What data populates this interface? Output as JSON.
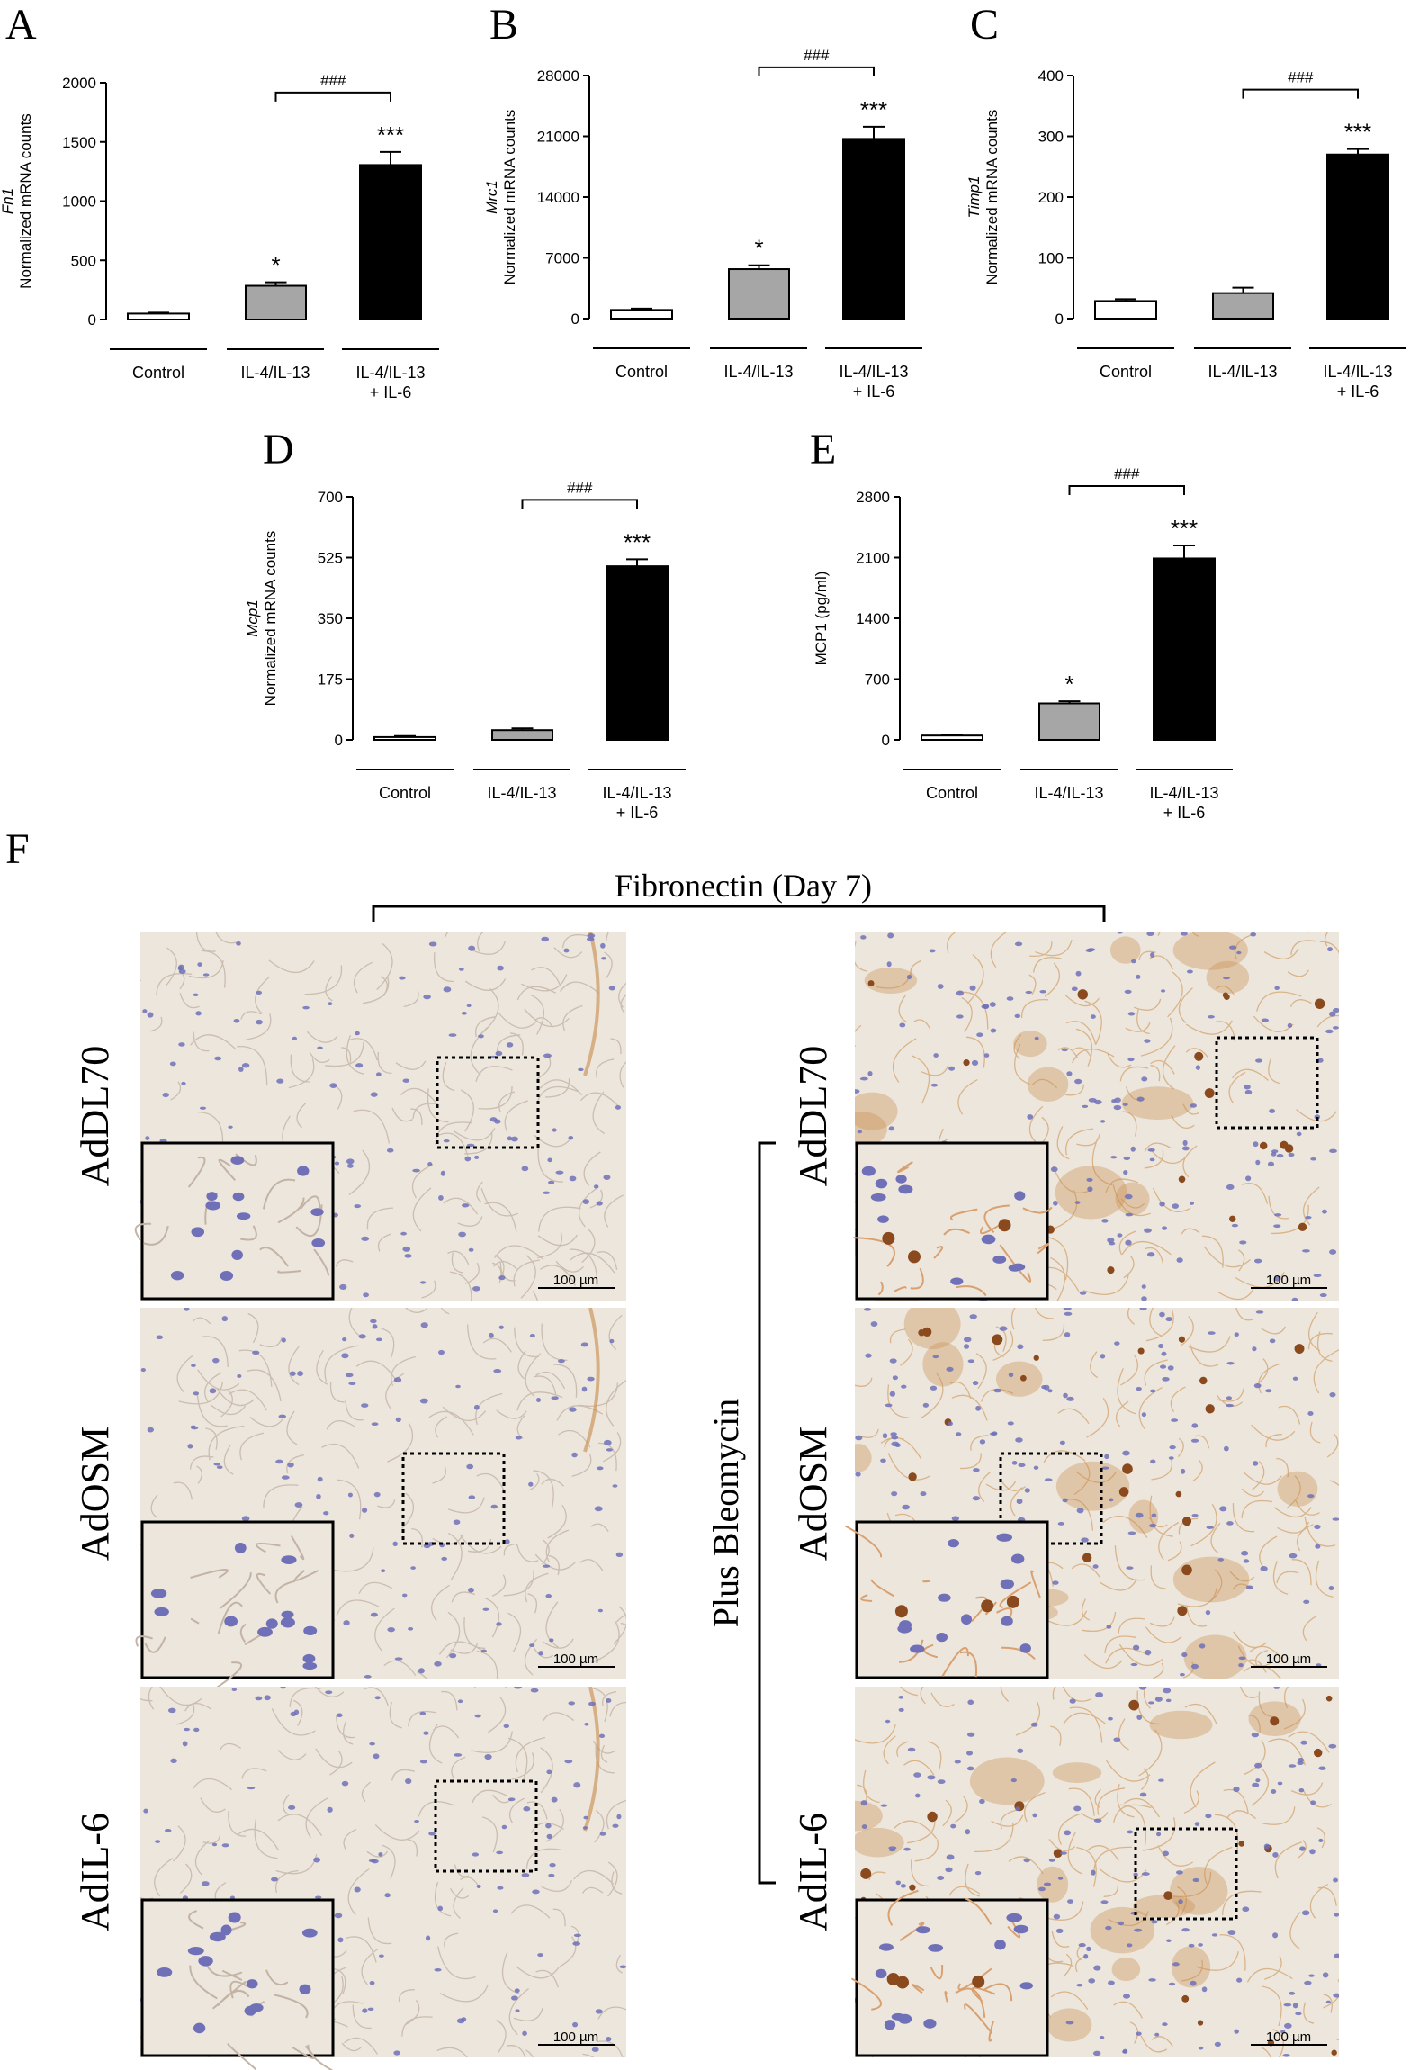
{
  "panel_labels": [
    "A",
    "B",
    "C",
    "D",
    "E",
    "F"
  ],
  "chart_data": [
    {
      "panel": "A",
      "type": "bar",
      "categories": [
        [
          "Control"
        ],
        [
          "IL-4/IL-13"
        ],
        [
          "IL-4/IL-13",
          "+ IL-6"
        ]
      ],
      "values": [
        50,
        285,
        1305
      ],
      "errors": [
        8,
        30,
        110
      ],
      "ylabel_gene": "Fn1",
      "ylabel": "Normalized mRNA counts",
      "ylim": [
        0,
        2000
      ],
      "ticks": [
        0,
        500,
        1000,
        1500,
        2000
      ],
      "sig": [
        "",
        "*",
        "***"
      ],
      "bracket": "###",
      "bar_colors": [
        "#ffffff",
        "#a6a6a6",
        "#000000"
      ]
    },
    {
      "panel": "B",
      "type": "bar",
      "categories": [
        [
          "Control"
        ],
        [
          "IL-4/IL-13"
        ],
        [
          "IL-4/IL-13",
          "+ IL-6"
        ]
      ],
      "values": [
        1000,
        5700,
        20700
      ],
      "errors": [
        150,
        450,
        1400
      ],
      "ylabel_gene": "Mrc1",
      "ylabel": "Normalized mRNA counts",
      "ylim": [
        0,
        28000
      ],
      "ticks": [
        0,
        7000,
        14000,
        21000,
        28000
      ],
      "sig": [
        "",
        "*",
        "***"
      ],
      "bracket": "###",
      "bar_colors": [
        "#ffffff",
        "#a6a6a6",
        "#000000"
      ]
    },
    {
      "panel": "C",
      "type": "bar",
      "categories": [
        [
          "Control"
        ],
        [
          "IL-4/IL-13"
        ],
        [
          "IL-4/IL-13",
          "+ IL-6"
        ]
      ],
      "values": [
        29,
        42,
        270
      ],
      "errors": [
        3,
        9,
        9
      ],
      "ylabel_gene": "Timp1",
      "ylabel": "Normalized mRNA counts",
      "ylim": [
        0,
        400
      ],
      "ticks": [
        0,
        100,
        200,
        300,
        400
      ],
      "sig": [
        "",
        "",
        "***"
      ],
      "bracket": "###",
      "bar_colors": [
        "#ffffff",
        "#a6a6a6",
        "#000000"
      ]
    },
    {
      "panel": "D",
      "type": "bar",
      "categories": [
        [
          "Control"
        ],
        [
          "IL-4/IL-13"
        ],
        [
          "IL-4/IL-13",
          "+ IL-6"
        ]
      ],
      "values": [
        8,
        28,
        500
      ],
      "errors": [
        3,
        5,
        20
      ],
      "ylabel_gene": "Mcp1",
      "ylabel": "Normalized mRNA counts",
      "ylim": [
        0,
        700
      ],
      "ticks": [
        0,
        175,
        350,
        525,
        700
      ],
      "sig": [
        "",
        "",
        "***"
      ],
      "bracket": "###",
      "bar_colors": [
        "#ffffff",
        "#a6a6a6",
        "#000000"
      ]
    },
    {
      "panel": "E",
      "type": "bar",
      "categories": [
        [
          "Control"
        ],
        [
          "IL-4/IL-13"
        ],
        [
          "IL-4/IL-13",
          "+ IL-6"
        ]
      ],
      "values": [
        50,
        420,
        2090
      ],
      "errors": [
        10,
        25,
        150
      ],
      "ylabel_gene": "",
      "ylabel": "MCP1 (pg/ml)",
      "ylim": [
        0,
        2800
      ],
      "ticks": [
        0,
        700,
        1400,
        2100,
        2800
      ],
      "sig": [
        "",
        "*",
        "***"
      ],
      "bracket": "###",
      "bar_colors": [
        "#ffffff",
        "#a6a6a6",
        "#000000"
      ]
    }
  ],
  "micrographs": {
    "title": "Fibronectin (Day 7)",
    "side_label": "Plus Bleomycin",
    "row_labels": [
      "AdDL70",
      "AdOSM",
      "AdIL-6"
    ],
    "scale_bar": "100 µm",
    "colors": {
      "tissue_bg": "#ece6dc",
      "nuclei": "#6f70b8",
      "stain": "#c98a4a",
      "dark_stain": "#8a4a1e"
    }
  }
}
